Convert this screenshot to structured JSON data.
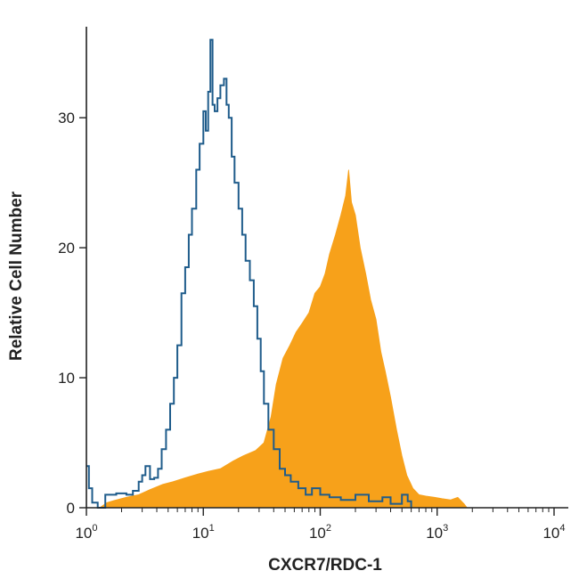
{
  "chart_data": {
    "type": "area",
    "title": "",
    "xlabel": "CXCR7/RDC-1",
    "ylabel": "Relative Cell Number",
    "x_scale": "log10",
    "xlim": [
      1,
      10000
    ],
    "ylim": [
      0,
      37
    ],
    "x_ticks": [
      {
        "value": 1,
        "base": "10",
        "exp": "0"
      },
      {
        "value": 10,
        "base": "10",
        "exp": "1"
      },
      {
        "value": 100,
        "base": "10",
        "exp": "2"
      },
      {
        "value": 1000,
        "base": "10",
        "exp": "3"
      },
      {
        "value": 10000,
        "base": "10",
        "exp": "4"
      }
    ],
    "y_ticks": [
      0,
      10,
      20,
      30
    ],
    "grid": false,
    "series": [
      {
        "style": "filled",
        "color": "#F7A11A",
        "points": [
          [
            1.3,
            0.0
          ],
          [
            1.5,
            0.4
          ],
          [
            1.8,
            0.6
          ],
          [
            2.2,
            0.8
          ],
          [
            2.8,
            1.0
          ],
          [
            3.5,
            1.4
          ],
          [
            4.5,
            1.8
          ],
          [
            5.5,
            2.0
          ],
          [
            7.0,
            2.3
          ],
          [
            9.0,
            2.6
          ],
          [
            11.0,
            2.8
          ],
          [
            14.0,
            3.0
          ],
          [
            18.0,
            3.6
          ],
          [
            22.0,
            4.0
          ],
          [
            28.0,
            4.4
          ],
          [
            33.0,
            5.0
          ],
          [
            38.0,
            7.0
          ],
          [
            42.0,
            9.5
          ],
          [
            48.0,
            11.5
          ],
          [
            55.0,
            12.5
          ],
          [
            62.0,
            13.5
          ],
          [
            70.0,
            14.2
          ],
          [
            80.0,
            15.0
          ],
          [
            90.0,
            16.5
          ],
          [
            100.0,
            17.0
          ],
          [
            110.0,
            18.0
          ],
          [
            120.0,
            19.5
          ],
          [
            135.0,
            21.0
          ],
          [
            150.0,
            22.5
          ],
          [
            165.0,
            24.0
          ],
          [
            175.0,
            26.0
          ],
          [
            185.0,
            23.5
          ],
          [
            200.0,
            22.5
          ],
          [
            220.0,
            20.0
          ],
          [
            245.0,
            18.0
          ],
          [
            270.0,
            16.0
          ],
          [
            300.0,
            14.5
          ],
          [
            330.0,
            12.0
          ],
          [
            360.0,
            10.5
          ],
          [
            400.0,
            8.5
          ],
          [
            450.0,
            6.0
          ],
          [
            500.0,
            4.0
          ],
          [
            550.0,
            2.5
          ],
          [
            620.0,
            1.5
          ],
          [
            700.0,
            1.0
          ],
          [
            800.0,
            0.9
          ],
          [
            950.0,
            0.8
          ],
          [
            1100.0,
            0.7
          ],
          [
            1300.0,
            0.6
          ],
          [
            1500.0,
            0.8
          ],
          [
            1700.0,
            0.3
          ],
          [
            1800.0,
            0.0
          ]
        ]
      },
      {
        "style": "line",
        "color": "#1F5C8B",
        "points": [
          [
            1.0,
            3.2
          ],
          [
            1.05,
            1.5
          ],
          [
            1.12,
            0.4
          ],
          [
            1.25,
            0.0
          ],
          [
            1.45,
            1.0
          ],
          [
            1.8,
            1.1
          ],
          [
            2.2,
            1.0
          ],
          [
            2.5,
            1.3
          ],
          [
            2.8,
            2.0
          ],
          [
            3.0,
            2.5
          ],
          [
            3.2,
            3.2
          ],
          [
            3.5,
            2.2
          ],
          [
            3.8,
            2.3
          ],
          [
            4.1,
            3.0
          ],
          [
            4.4,
            4.5
          ],
          [
            4.8,
            6.0
          ],
          [
            5.2,
            8.0
          ],
          [
            5.6,
            10.0
          ],
          [
            6.0,
            12.5
          ],
          [
            6.5,
            16.5
          ],
          [
            7.0,
            18.5
          ],
          [
            7.5,
            21.0
          ],
          [
            8.0,
            23.0
          ],
          [
            8.7,
            26.0
          ],
          [
            9.3,
            28.0
          ],
          [
            10.0,
            30.5
          ],
          [
            10.5,
            29.0
          ],
          [
            11.0,
            32.0
          ],
          [
            11.5,
            36.0
          ],
          [
            12.0,
            31.0
          ],
          [
            12.5,
            30.5
          ],
          [
            13.2,
            31.5
          ],
          [
            14.0,
            32.5
          ],
          [
            15.0,
            33.0
          ],
          [
            15.8,
            31.0
          ],
          [
            16.5,
            30.0
          ],
          [
            17.5,
            27.0
          ],
          [
            18.5,
            25.0
          ],
          [
            20.0,
            23.0
          ],
          [
            21.5,
            21.0
          ],
          [
            23.0,
            19.0
          ],
          [
            25.0,
            17.5
          ],
          [
            27.0,
            15.5
          ],
          [
            29.0,
            13.0
          ],
          [
            31.0,
            10.5
          ],
          [
            33.0,
            8.0
          ],
          [
            36.0,
            6.0
          ],
          [
            40.0,
            4.5
          ],
          [
            45.0,
            3.0
          ],
          [
            50.0,
            2.5
          ],
          [
            56.0,
            2.0
          ],
          [
            65.0,
            1.5
          ],
          [
            75.0,
            1.0
          ],
          [
            85.0,
            1.5
          ],
          [
            100.0,
            1.0
          ],
          [
            120.0,
            0.8
          ],
          [
            150.0,
            0.6
          ],
          [
            200.0,
            1.0
          ],
          [
            260.0,
            0.5
          ],
          [
            340.0,
            0.8
          ],
          [
            400.0,
            0.3
          ],
          [
            500.0,
            1.0
          ],
          [
            560.0,
            0.5
          ],
          [
            600.0,
            0.0
          ]
        ]
      }
    ]
  }
}
